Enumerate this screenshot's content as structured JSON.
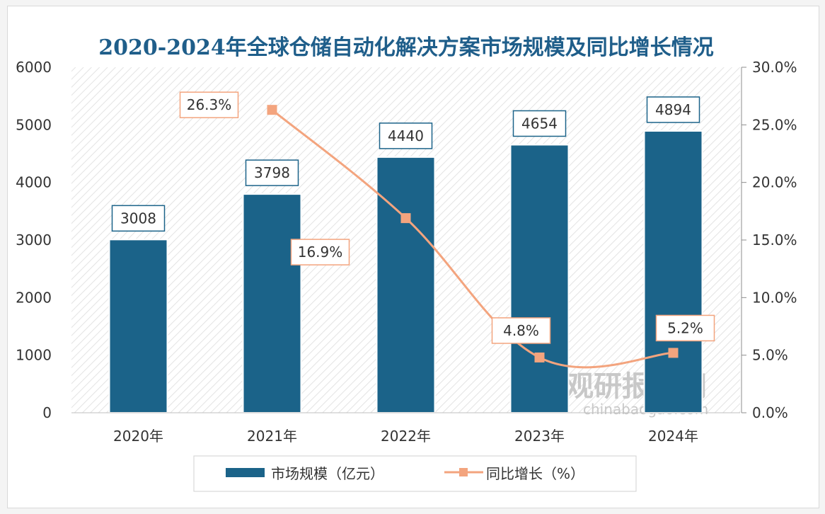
{
  "colors": {
    "bar": "#1b6389",
    "line": "#f3a47e",
    "bar_label_border": "#1b6389",
    "line_label_border": "#f3a47e",
    "title": "#1f5e8a"
  },
  "watermark": {
    "brand": "观研报告网",
    "url": "chinabaogao.com"
  },
  "chart_data": {
    "type": "bar",
    "title": "2020-2024年全球仓储自动化解决方案市场规模及同比增长情况",
    "categories": [
      "2020年",
      "2021年",
      "2022年",
      "2023年",
      "2024年"
    ],
    "ylim": [
      0,
      6000
    ],
    "y_ticks": [
      "0",
      "1000",
      "2000",
      "3000",
      "4000",
      "5000",
      "6000"
    ],
    "y2lim": [
      0,
      30
    ],
    "y2_ticks": [
      "0.0%",
      "5.0%",
      "10.0%",
      "15.0%",
      "20.0%",
      "25.0%",
      "30.0%"
    ],
    "legend_position": "bottom",
    "grid": false,
    "series": [
      {
        "name": "市场规模（亿元）",
        "type": "bar",
        "axis": "left",
        "values": [
          3008,
          3798,
          4440,
          4654,
          4894
        ],
        "labels": [
          "3008",
          "3798",
          "4440",
          "4654",
          "4894"
        ]
      },
      {
        "name": "同比增长（%）",
        "type": "line",
        "axis": "right",
        "x": [
          "2021年",
          "2022年",
          "2023年",
          "2024年"
        ],
        "values": [
          26.3,
          16.9,
          4.8,
          5.2
        ],
        "labels": [
          "26.3%",
          "16.9%",
          "4.8%",
          "5.2%"
        ]
      }
    ]
  }
}
